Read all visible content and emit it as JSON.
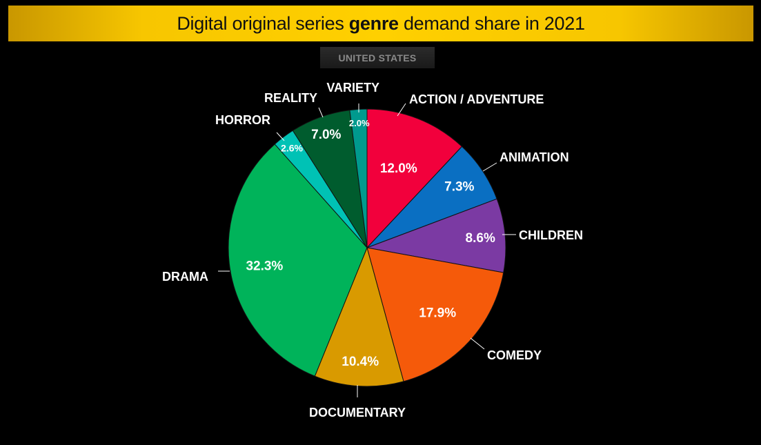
{
  "title": {
    "before": "Digital original series ",
    "bold": "genre",
    "after": " demand share in 2021"
  },
  "region": "UNITED STATES",
  "chart_data": {
    "type": "pie",
    "title": "Digital original series genre demand share in 2021",
    "subtitle": "UNITED STATES",
    "unit": "%",
    "slices": [
      {
        "label": "ACTION / ADVENTURE",
        "value": 12.0,
        "display": "12.0%",
        "color": "#f2003c"
      },
      {
        "label": "ANIMATION",
        "value": 7.3,
        "display": "7.3%",
        "color": "#0a6fc2"
      },
      {
        "label": "CHILDREN",
        "value": 8.6,
        "display": "8.6%",
        "color": "#7b3aa3"
      },
      {
        "label": "COMEDY",
        "value": 17.9,
        "display": "17.9%",
        "color": "#f55a0a"
      },
      {
        "label": "DOCUMENTARY",
        "value": 10.4,
        "display": "10.4%",
        "color": "#d99a00"
      },
      {
        "label": "DRAMA",
        "value": 32.3,
        "display": "32.3%",
        "color": "#00b35a"
      },
      {
        "label": "HORROR",
        "value": 2.6,
        "display": "2.6%",
        "color": "#00c2b5"
      },
      {
        "label": "REALITY",
        "value": 7.0,
        "display": "7.0%",
        "color": "#005c2e"
      },
      {
        "label": "VARIETY",
        "value": 2.0,
        "display": "2.0%",
        "color": "#009a8e"
      }
    ]
  }
}
